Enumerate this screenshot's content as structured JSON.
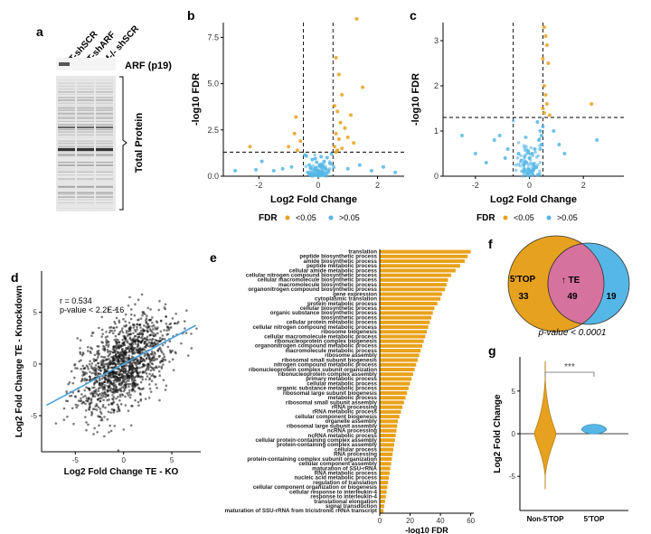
{
  "colors": {
    "orange": "#E6A11F",
    "blue": "#55B7E6",
    "pink": "#D6729E",
    "line": "#4BA3DB",
    "bar": "#E9A21B"
  },
  "panels": {
    "a": {
      "letter": "a",
      "lanes": [
        "WT-shSCR",
        "WT-shARF",
        "Arf-/- shSCR"
      ],
      "arf_label": "ARF (p19)",
      "total_label": "Total Protein"
    },
    "b": {
      "letter": "b"
    },
    "c": {
      "letter": "c"
    },
    "legend": {
      "title": "FDR",
      "items": [
        "<0.05",
        ">0.05"
      ]
    },
    "d": {
      "letter": "d",
      "r_text": "r = 0.534",
      "p_text": "p-value < 2.2E-16"
    },
    "e": {
      "letter": "e"
    },
    "f": {
      "letter": "f",
      "left_label": "5'TOP",
      "mid_label": "↑ TE",
      "left_n": "33",
      "mid_n": "49",
      "right_n": "19",
      "pval": "p-value < 0.0001"
    },
    "g": {
      "letter": "g",
      "sig": "***"
    }
  },
  "chart_data": [
    {
      "id": "b",
      "type": "scatter",
      "xlabel": "Log2 Fold Change",
      "ylabel": "-log10 FDR",
      "xlim": [
        -3.2,
        2.9
      ],
      "ylim": [
        0,
        8.3
      ],
      "xticks": [
        -2,
        0,
        2
      ],
      "yticks": [
        0.0,
        2.5,
        5.0,
        7.5
      ],
      "thresholds": {
        "x": [
          -0.5,
          0.5
        ],
        "y": 1.3
      },
      "series": [
        {
          "name": "<0.05",
          "color": "#E6A11F",
          "points": [
            [
              0.6,
              6.4
            ],
            [
              0.7,
              5.5
            ],
            [
              0.8,
              4.4
            ],
            [
              0.55,
              3.8
            ],
            [
              0.65,
              3.5
            ],
            [
              0.75,
              2.9
            ],
            [
              1.3,
              8.5
            ],
            [
              1.5,
              4.8
            ],
            [
              0.9,
              2.6
            ],
            [
              0.6,
              2.3
            ],
            [
              0.7,
              2.0
            ],
            [
              1.0,
              2.1
            ],
            [
              1.2,
              1.8
            ],
            [
              0.55,
              1.6
            ],
            [
              0.65,
              1.4
            ],
            [
              0.8,
              1.5
            ],
            [
              -0.7,
              1.4
            ],
            [
              -1.0,
              1.6
            ],
            [
              -0.6,
              1.9
            ],
            [
              -0.8,
              2.3
            ],
            [
              -0.75,
              3.2
            ],
            [
              -2.3,
              1.6
            ],
            [
              0.6,
              1.3
            ],
            [
              1.1,
              3.3
            ]
          ]
        },
        {
          "name": ">0.05",
          "color": "#55B7E6",
          "points": [
            [
              -0.3,
              0.6
            ],
            [
              -0.2,
              0.9
            ],
            [
              -0.1,
              0.4
            ],
            [
              0.0,
              0.3
            ],
            [
              0.1,
              0.5
            ],
            [
              0.2,
              0.8
            ],
            [
              0.3,
              1.0
            ],
            [
              -0.4,
              1.1
            ],
            [
              0.4,
              0.7
            ],
            [
              -0.35,
              0.2
            ],
            [
              0.35,
              0.25
            ],
            [
              0.15,
              0.1
            ],
            [
              -0.15,
              0.15
            ],
            [
              0.05,
              0.6
            ],
            [
              -0.05,
              0.75
            ],
            [
              0.25,
              0.4
            ],
            [
              -0.25,
              0.45
            ],
            [
              -0.9,
              0.5
            ],
            [
              -1.2,
              0.4
            ],
            [
              -1.5,
              0.3
            ],
            [
              -2.1,
              0.35
            ],
            [
              -2.8,
              0.3
            ],
            [
              -1.9,
              0.8
            ],
            [
              1.0,
              0.4
            ],
            [
              1.4,
              0.6
            ],
            [
              2.2,
              0.5
            ],
            [
              2.6,
              0.2
            ],
            [
              1.8,
              0.3
            ],
            [
              0.45,
              1.2
            ],
            [
              -0.45,
              1.15
            ],
            [
              0.1,
              1.05
            ],
            [
              -0.1,
              0.95
            ],
            [
              0.3,
              0.15
            ],
            [
              -0.3,
              0.1
            ],
            [
              0.2,
              0.05
            ],
            [
              -0.2,
              0.05
            ],
            [
              0.0,
              0.1
            ]
          ]
        }
      ]
    },
    {
      "id": "c",
      "type": "scatter",
      "xlabel": "Log2 Fold Change",
      "ylabel": "-log10 FDR",
      "xlim": [
        -3.2,
        3.5
      ],
      "ylim": [
        0,
        3.4
      ],
      "xticks": [
        -2,
        0,
        2
      ],
      "yticks": [
        0,
        1,
        2,
        3
      ],
      "thresholds": {
        "x": [
          -0.6,
          0.5
        ],
        "y": 1.3
      },
      "series": [
        {
          "name": "<0.05",
          "color": "#E6A11F",
          "points": [
            [
              0.55,
              3.3
            ],
            [
              0.6,
              3.1
            ],
            [
              0.65,
              2.9
            ],
            [
              0.5,
              2.6
            ],
            [
              0.7,
              2.5
            ],
            [
              0.55,
              2.0
            ],
            [
              0.6,
              1.8
            ],
            [
              0.65,
              1.6
            ],
            [
              0.5,
              1.5
            ],
            [
              0.55,
              1.4
            ],
            [
              2.3,
              1.6
            ],
            [
              0.75,
              1.35
            ]
          ]
        },
        {
          "name": ">0.05",
          "color": "#55B7E6",
          "points": [
            [
              0.3,
              1.2
            ],
            [
              0.4,
              1.0
            ],
            [
              0.45,
              0.9
            ],
            [
              0.35,
              0.8
            ],
            [
              0.2,
              0.6
            ],
            [
              0.1,
              0.5
            ],
            [
              0.0,
              0.4
            ],
            [
              -0.1,
              0.3
            ],
            [
              -0.2,
              0.25
            ],
            [
              -0.3,
              0.35
            ],
            [
              -0.4,
              0.5
            ],
            [
              0.25,
              0.2
            ],
            [
              0.15,
              0.15
            ],
            [
              0.05,
              0.1
            ],
            [
              -0.05,
              0.08
            ],
            [
              0.4,
              0.6
            ],
            [
              0.45,
              0.7
            ],
            [
              0.5,
              1.1
            ],
            [
              -0.9,
              0.4
            ],
            [
              -1.1,
              0.9
            ],
            [
              -1.3,
              0.8
            ],
            [
              -0.8,
              0.6
            ],
            [
              -2.5,
              0.9
            ],
            [
              1.1,
              0.7
            ],
            [
              1.3,
              0.5
            ],
            [
              0.9,
              1.0
            ],
            [
              2.5,
              0.8
            ],
            [
              -1.6,
              0.3
            ],
            [
              -2.0,
              0.5
            ]
          ]
        }
      ]
    },
    {
      "id": "d",
      "type": "scatter",
      "xlabel": "Log2 Fold Change TE - KO",
      "ylabel": "Log2 Fold Change TE - Knockdown",
      "xlim": [
        -8.5,
        8
      ],
      "ylim": [
        -8.5,
        9
      ],
      "xticks": [
        -5,
        0,
        5
      ],
      "yticks": [
        -5,
        0,
        5
      ],
      "fit": {
        "intercept": 0.0,
        "slope": 0.5
      }
    },
    {
      "id": "e",
      "type": "bar",
      "orientation": "horizontal",
      "xlabel": "-log10 FDR",
      "xlim": [
        0,
        62
      ],
      "xticks": [
        0,
        20,
        40,
        60
      ],
      "categories": [
        "translation",
        "peptide biosynthetic process",
        "amide biosynthetic process",
        "peptide metabolic process",
        "cellular amide metabolic process",
        "cellular nitrogen compound biosynthetic process",
        "cellular macromolecule biosynthetic process",
        "macromolecule biosynthetic process",
        "organonitrogen compound biosynthetic process",
        "gene expression",
        "cytoplasmic translation",
        "protein metabolic process",
        "cellular biosynthetic process",
        "organic substance biosynthetic process",
        "biosynthetic process",
        "cellular protein metabolic process",
        "cellular nitrogen compound metabolic process",
        "ribosome biogenesis",
        "cellular macromolecule metabolic process",
        "ribonucleoprotein complex biogenesis",
        "organonitrogen compound metabolic process",
        "macromolecule metabolic process",
        "ribosome assembly",
        "ribosomal small subunit biogenesis",
        "nitrogen compound metabolic process",
        "ribonucleoprotein complex subunit organization",
        "ribonucleoprotein complex assembly",
        "primary metabolic process",
        "cellular metabolic process",
        "organic substance metabolic process",
        "ribosomal large subunit biogenesis",
        "metabolic process",
        "ribosomal small subunit assembly",
        "rRNA processing",
        "rRNA metabolic process",
        "cellular component biogenesis",
        "organelle assembly",
        "ribosomal large subunit assembly",
        "ncRNA processing",
        "ncRNA metabolic process",
        "cellular protein-containing complex assembly",
        "protein-containing complex assembly",
        "cellular process",
        "RNA processing",
        "protein-containing complex subunit organization",
        "cellular component assembly",
        "maturation of SSU-rRNA",
        "RNA metabolic process",
        "nucleic acid metabolic process",
        "regulation of translation",
        "cellular component organization or biogenesis",
        "cellular response to interleukin-4",
        "response to interleukin-4",
        "translational elongation",
        "signal transduction",
        "maturation of SSU-rRNA from tricistronic rRNA transcript"
      ],
      "values": [
        60,
        58,
        56,
        53,
        50,
        47,
        45,
        44,
        43,
        41,
        40,
        38,
        36,
        35,
        34,
        33,
        32,
        31,
        30,
        29,
        28,
        27,
        26,
        25,
        24,
        23,
        22,
        21,
        20,
        19,
        18,
        17,
        16,
        15,
        14,
        13,
        12,
        11.5,
        11,
        10.5,
        10,
        9.5,
        9,
        8.5,
        8,
        7.5,
        7,
        6.5,
        6,
        5.5,
        5,
        4.5,
        4,
        3.5,
        3,
        2.5
      ]
    },
    {
      "id": "g",
      "type": "violin",
      "ylabel": "Log2 Fold Change",
      "categories": [
        "Non-5'TOP",
        "5'TOP"
      ],
      "ylim": [
        -9,
        9
      ],
      "yticks": [
        -5,
        0,
        5
      ]
    }
  ]
}
